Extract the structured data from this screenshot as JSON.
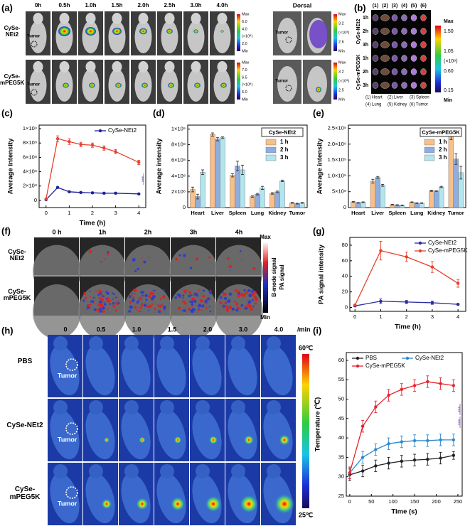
{
  "panel_labels": [
    "(a)",
    "(b)",
    "(c)",
    "(d)",
    "(e)",
    "(f)",
    "(g)",
    "(h)",
    "(i)"
  ],
  "panel_a": {
    "times": [
      "0h",
      "0.5h",
      "1.0h",
      "1.5h",
      "2.0h",
      "2.5h",
      "3.0h",
      "4.0h"
    ],
    "dorsal": "Dorsal",
    "rows": [
      "CySe-NEt2",
      "CySe-mPEG5K"
    ],
    "tumor": "Tumor",
    "colorbars": [
      [
        "Max",
        "6.0",
        "4.0",
        "(×10⁸)",
        "2.0",
        "Min"
      ],
      [
        "Max",
        "7.0",
        "6.5",
        "(×10⁸)",
        "6.0",
        "Min"
      ]
    ],
    "dorsal_colorbars": [
      [
        "Max",
        "3.2",
        "(×10⁸)",
        "2.6",
        "Min"
      ],
      [
        "Max",
        "3.2",
        "(×10⁸)",
        "2.5",
        "Min"
      ]
    ]
  },
  "panel_b": {
    "columns": [
      "(1)",
      "(2)",
      "(3)",
      "(4)",
      "(5)",
      "(6)"
    ],
    "groups": [
      "CySe-NEt2",
      "CySe-mPEG5K"
    ],
    "rows": [
      "1h",
      "2h",
      "3h"
    ],
    "colorbar": [
      "Max",
      "1.50",
      "1.05",
      "(×10⁹)",
      "0.60",
      "0.15",
      "Min"
    ],
    "legend": [
      "(1) Heart",
      "(2) Liver",
      "(3) Spleen",
      "(4) Lung",
      "(5) Kidney",
      "(6) Tumor"
    ]
  },
  "panel_f": {
    "times": [
      "0 h",
      "1h",
      "2h",
      "3h",
      "4h"
    ],
    "rows": [
      "CySe-NEt2",
      "CySe-mPEG5K"
    ],
    "colorbar": [
      "Max",
      "Min"
    ],
    "colorbar_titles": [
      "B-mode signal",
      "PA signal"
    ]
  },
  "panel_h": {
    "times": [
      "0",
      "0.5",
      "1.0",
      "1.5",
      "2.0",
      "3.0",
      "4.0"
    ],
    "unit": "/min",
    "rows": [
      "PBS",
      "CySe-NEt2",
      "CySe-mPEG5K"
    ],
    "tumor": "Tumor",
    "colorbar": [
      "60℃",
      "25℃"
    ]
  },
  "chart_data": [
    {
      "type": "line",
      "x_label": "Time (h)",
      "y_label": "Average intensity",
      "x": [
        0,
        0.5,
        1,
        1.5,
        2,
        2.5,
        3,
        4
      ],
      "xlim": [
        -0.3,
        4.3
      ],
      "xticks": [
        0,
        1,
        2,
        3,
        4
      ],
      "ylim": [
        -100000000,
        1050000000
      ],
      "yticks": [
        0,
        {
          "value": 200000000,
          "label": "2×10⁸"
        },
        {
          "value": 400000000,
          "label": "4×10⁸"
        },
        {
          "value": 600000000,
          "label": "6×10⁸"
        },
        {
          "value": 800000000,
          "label": "8×10⁸"
        },
        {
          "value": 1000000000,
          "label": "1×10⁹"
        }
      ],
      "series": [
        {
          "name": "CySe-NEt2",
          "color": "#1f1f9c",
          "values": [
            10000000,
            180000000,
            120000000,
            110000000,
            105000000,
            100000000,
            100000000,
            90000000
          ],
          "errors": [
            5000000,
            10000000,
            10000000,
            10000000,
            10000000,
            10000000,
            10000000,
            8000000
          ]
        },
        {
          "color": "#e8412c",
          "values": [
            20000000,
            860000000,
            820000000,
            780000000,
            770000000,
            730000000,
            680000000,
            530000000
          ],
          "errors": [
            5000000,
            40000000,
            40000000,
            30000000,
            30000000,
            30000000,
            30000000,
            30000000
          ]
        }
      ],
      "legend": "upper right",
      "annotations": [
        "***"
      ]
    },
    {
      "type": "bar",
      "legend_title": "CySe-NEt2",
      "y_label": "Average intensity",
      "categories": [
        "Heart",
        "Liver",
        "Spleen",
        "Lung",
        "Kidney",
        "Tumor"
      ],
      "ylim": [
        0,
        1050000000
      ],
      "yticks": [
        0,
        {
          "value": 200000000,
          "label": "2×10⁸"
        },
        {
          "value": 400000000,
          "label": "4×10⁸"
        },
        {
          "value": 600000000,
          "label": "6×10⁸"
        },
        {
          "value": 800000000,
          "label": "8×10⁸"
        },
        {
          "value": 1000000000,
          "label": "1×10⁹"
        }
      ],
      "series": [
        {
          "name": "1 h",
          "color": "#f7c08b",
          "values": [
            230000000,
            930000000,
            410000000,
            140000000,
            180000000,
            60000000
          ],
          "errors": [
            30000000,
            20000000,
            20000000,
            10000000,
            10000000,
            5000000
          ]
        },
        {
          "name": "2 h",
          "color": "#8eaee0",
          "values": [
            140000000,
            870000000,
            530000000,
            170000000,
            200000000,
            50000000
          ],
          "errors": [
            30000000,
            20000000,
            60000000,
            10000000,
            10000000,
            5000000
          ]
        },
        {
          "name": "3 h",
          "color": "#b3e5ee",
          "values": [
            450000000,
            890000000,
            480000000,
            250000000,
            340000000,
            60000000
          ],
          "errors": [
            30000000,
            10000000,
            60000000,
            20000000,
            10000000,
            5000000
          ]
        }
      ],
      "legend": "upper right"
    },
    {
      "type": "bar",
      "legend_title": "CySe-mPEG5K",
      "y_label": "Average intensity",
      "categories": [
        "Heart",
        "Liver",
        "Spleen",
        "Lung",
        "Kidney",
        "Tumor"
      ],
      "ylim": [
        0,
        2600000000
      ],
      "yticks": [
        0,
        {
          "value": 500000000,
          "label": "5×10⁸"
        },
        {
          "value": 1000000000,
          "label": "1.0×10⁹"
        },
        {
          "value": 1500000000,
          "label": "1.5×10⁹"
        },
        {
          "value": 2000000000,
          "label": "2.0×10⁹"
        },
        {
          "value": 2500000000,
          "label": "2.5×10⁹"
        }
      ],
      "series": [
        {
          "name": "1 h",
          "color": "#f7c08b",
          "values": [
            180000000,
            830000000,
            90000000,
            170000000,
            530000000,
            2270000000
          ],
          "errors": [
            10000000,
            60000000,
            10000000,
            10000000,
            20000000,
            130000000
          ]
        },
        {
          "name": "2 h",
          "color": "#8eaee0",
          "values": [
            150000000,
            950000000,
            80000000,
            140000000,
            520000000,
            1530000000
          ],
          "errors": [
            10000000,
            30000000,
            10000000,
            10000000,
            10000000,
            170000000
          ]
        },
        {
          "name": "3 h",
          "color": "#b3e5ee",
          "values": [
            170000000,
            700000000,
            70000000,
            140000000,
            650000000,
            1100000000
          ],
          "errors": [
            10000000,
            30000000,
            10000000,
            10000000,
            20000000,
            200000000
          ]
        }
      ],
      "legend": "upper right"
    },
    {
      "type": "line",
      "x_label": "Time (h)",
      "y_label": "PA signal intensity",
      "x": [
        0,
        1,
        2,
        3,
        4
      ],
      "xlim": [
        -0.2,
        4.3
      ],
      "xticks": [
        0,
        1,
        2,
        3,
        4
      ],
      "ylim": [
        -5,
        90
      ],
      "yticks": [
        0,
        20,
        40,
        60,
        80
      ],
      "series": [
        {
          "name": "CySe-NEt2",
          "color": "#2b2b9c",
          "values": [
            2,
            8,
            7,
            6,
            4
          ],
          "errors": [
            1,
            3,
            2,
            2,
            1
          ]
        },
        {
          "name": "CySe-mPEG5K",
          "color": "#e8412c",
          "values": [
            3,
            73,
            65,
            52,
            31
          ],
          "errors": [
            1,
            12,
            6,
            7,
            5
          ]
        }
      ],
      "legend": "upper right"
    },
    {
      "type": "line",
      "x_label": "Time (s)",
      "y_label": "Temperature (℃)",
      "x": [
        0,
        30,
        60,
        90,
        120,
        150,
        180,
        210,
        240
      ],
      "xlim": [
        -8,
        260
      ],
      "xticks": [
        0,
        50,
        100,
        150,
        200,
        250
      ],
      "ylim": [
        25,
        62
      ],
      "yticks": [
        25,
        30,
        35,
        40,
        45,
        50,
        55,
        60
      ],
      "series": [
        {
          "name": "PBS",
          "color": "#222222",
          "values": [
            30.5,
            31.5,
            32.8,
            33.5,
            34,
            34.3,
            34.5,
            34.8,
            35.5
          ],
          "errors": [
            1.5,
            1.5,
            1.5,
            1.5,
            1.5,
            1.5,
            1.5,
            1.5,
            1
          ]
        },
        {
          "name": "CySe-NEt2",
          "color": "#2a8ad4",
          "values": [
            31,
            35,
            37,
            38.5,
            39,
            39.3,
            39.3,
            39.5,
            39.5
          ],
          "errors": [
            1.5,
            1.5,
            1.5,
            1.5,
            1.5,
            1.5,
            1.5,
            1.5,
            1.5
          ]
        },
        {
          "name": "CySe-mPEG5K",
          "color": "#e8212c",
          "values": [
            31,
            43,
            48,
            51,
            52.5,
            53.5,
            54.5,
            54,
            53.5
          ],
          "errors": [
            1.5,
            1.5,
            1.5,
            1.5,
            1.5,
            1.5,
            1.5,
            1.5,
            1.5
          ]
        }
      ],
      "legend": "upper center",
      "annotations": [
        "***",
        "***"
      ]
    }
  ]
}
